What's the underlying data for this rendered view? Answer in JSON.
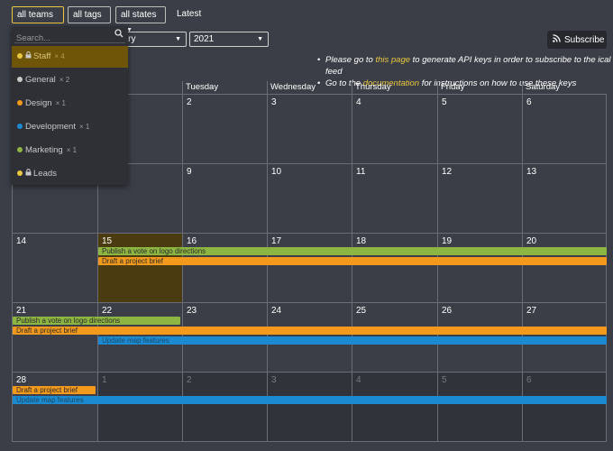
{
  "filters": {
    "teams": "all teams",
    "tags": "all tags",
    "states": "all states",
    "latest": "Latest"
  },
  "selects": {
    "month": "uary",
    "year": "2021"
  },
  "subscribe": {
    "label": "Subscribe"
  },
  "notes": {
    "line1_pre": "Please go to ",
    "line1_link": "this page",
    "line1_post": " to generate API keys in order to subscribe to the ical feed",
    "line2_pre": "Go to the ",
    "line2_link": "documentation",
    "line2_post": " for instructions on how to use these keys"
  },
  "weekdays": [
    "",
    "y",
    "Tuesday",
    "Wednesday",
    "Thursday",
    "Friday",
    "Saturday"
  ],
  "weeks": [
    [
      {
        "d": "",
        "other": false
      },
      {
        "d": "",
        "other": false
      },
      {
        "d": "2",
        "other": false
      },
      {
        "d": "3",
        "other": false
      },
      {
        "d": "4",
        "other": false
      },
      {
        "d": "5",
        "other": false
      },
      {
        "d": "6",
        "other": false
      }
    ],
    [
      {
        "d": "",
        "other": false
      },
      {
        "d": "",
        "other": false
      },
      {
        "d": "9",
        "other": false
      },
      {
        "d": "10",
        "other": false
      },
      {
        "d": "11",
        "other": false
      },
      {
        "d": "12",
        "other": false
      },
      {
        "d": "13",
        "other": false
      }
    ],
    [
      {
        "d": "14",
        "other": false
      },
      {
        "d": "15",
        "other": false,
        "today": true
      },
      {
        "d": "16",
        "other": false
      },
      {
        "d": "17",
        "other": false
      },
      {
        "d": "18",
        "other": false
      },
      {
        "d": "19",
        "other": false
      },
      {
        "d": "20",
        "other": false
      }
    ],
    [
      {
        "d": "21",
        "other": false
      },
      {
        "d": "22",
        "other": false
      },
      {
        "d": "23",
        "other": false
      },
      {
        "d": "24",
        "other": false
      },
      {
        "d": "25",
        "other": false
      },
      {
        "d": "26",
        "other": false
      },
      {
        "d": "27",
        "other": false
      }
    ],
    [
      {
        "d": "28",
        "other": false
      },
      {
        "d": "1",
        "other": true
      },
      {
        "d": "2",
        "other": true
      },
      {
        "d": "3",
        "other": true
      },
      {
        "d": "4",
        "other": true
      },
      {
        "d": "5",
        "other": true
      },
      {
        "d": "6",
        "other": true
      }
    ]
  ],
  "events": [
    {
      "week": 2,
      "start": 1,
      "end": 7,
      "lane": 0,
      "title": "Publish a vote on logo directions",
      "color": "green"
    },
    {
      "week": 2,
      "start": 1,
      "end": 7,
      "lane": 1,
      "title": "Draft a project brief",
      "color": "orange"
    },
    {
      "week": 3,
      "start": 0,
      "end": 2,
      "lane": 0,
      "title": "Publish a vote on logo directions",
      "color": "green"
    },
    {
      "week": 3,
      "start": 0,
      "end": 7,
      "lane": 1,
      "title": "Draft a project brief",
      "color": "orange"
    },
    {
      "week": 3,
      "start": 1,
      "end": 7,
      "lane": 2,
      "title": "Update map features",
      "color": "blue"
    },
    {
      "week": 4,
      "start": 0,
      "end": 1,
      "lane": 0,
      "title": "Draft a project brief",
      "color": "orange"
    },
    {
      "week": 4,
      "start": 0,
      "end": 7,
      "lane": 1,
      "title": "Update map features",
      "color": "blue"
    }
  ],
  "team_dropdown": {
    "search_placeholder": "Search...",
    "items": [
      {
        "label": "Staff",
        "count": "× 4",
        "color": "#e8c742",
        "locked": true,
        "selected": true
      },
      {
        "label": "General",
        "count": "× 2",
        "color": "#c8c8c8",
        "locked": false,
        "selected": false
      },
      {
        "label": "Design",
        "count": "× 1",
        "color": "#f39a1c",
        "locked": false,
        "selected": false
      },
      {
        "label": "Development",
        "count": "× 1",
        "color": "#1b8ad0",
        "locked": false,
        "selected": false
      },
      {
        "label": "Marketing",
        "count": "× 1",
        "color": "#8db542",
        "locked": false,
        "selected": false
      },
      {
        "label": "Leads",
        "count": "",
        "color": "#e8c742",
        "locked": true,
        "selected": false
      }
    ]
  },
  "icons": {
    "search": "magnifier-icon",
    "rss": "rss-icon",
    "caret": "chevron-down-icon",
    "lock": "lock-icon"
  }
}
